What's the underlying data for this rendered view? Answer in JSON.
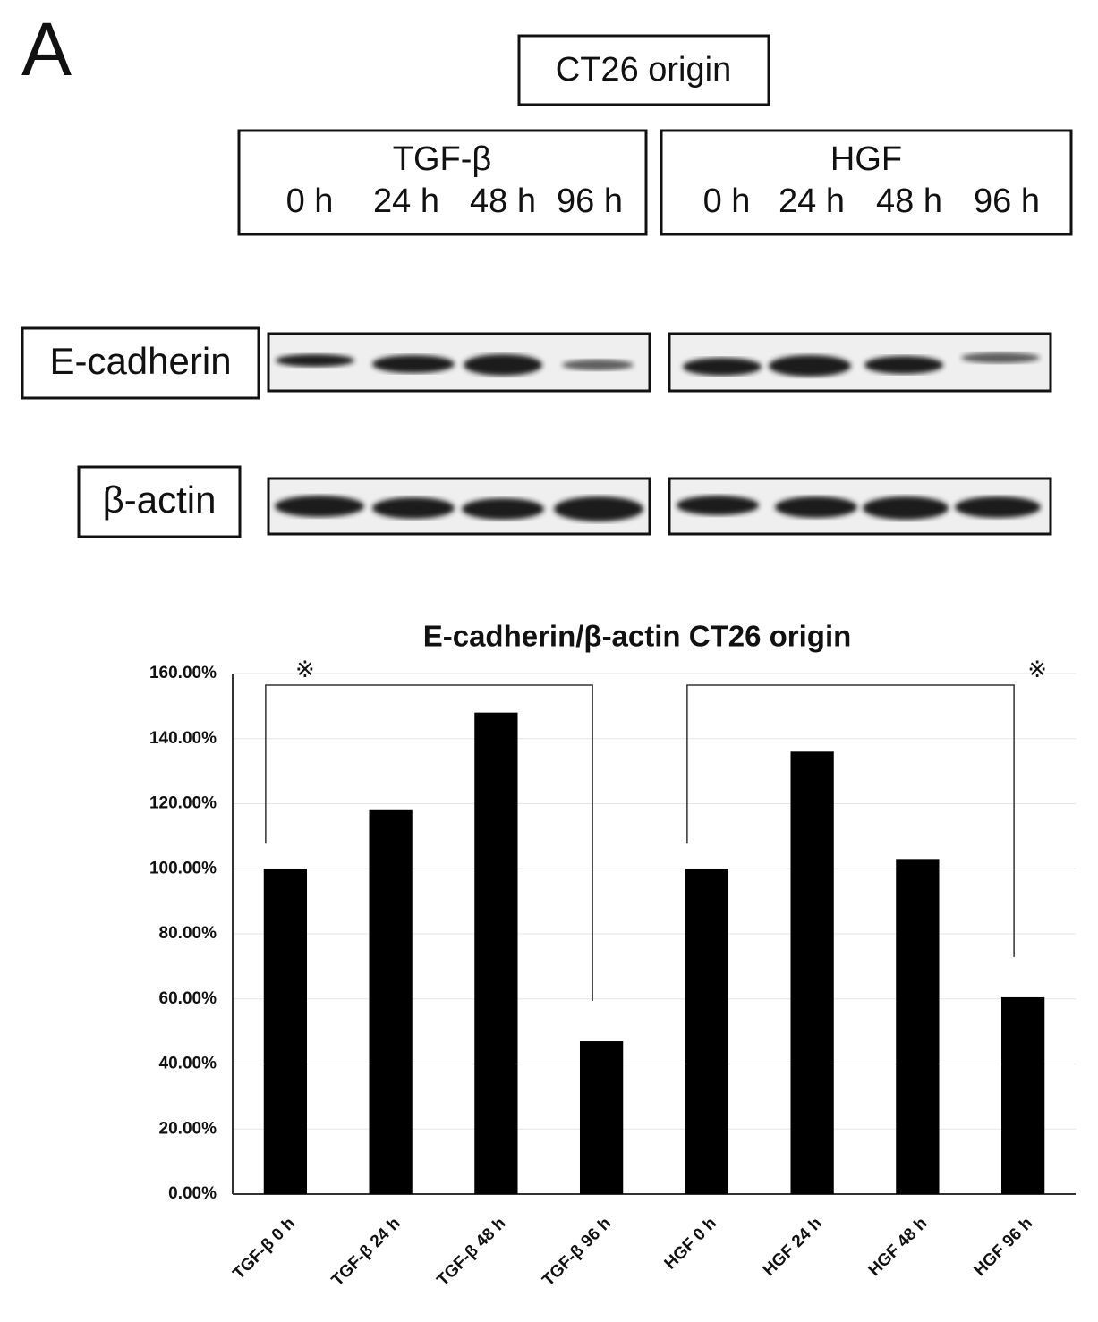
{
  "figure": {
    "panel": "A",
    "origin": "CT26 origin",
    "treatments": [
      {
        "name": "TGF-β",
        "times": [
          "0 h",
          "24 h",
          "48 h",
          "96 h"
        ]
      },
      {
        "name": "HGF",
        "times": [
          "0 h",
          "24 h",
          "48 h",
          "96 h"
        ]
      }
    ],
    "blots": [
      "E-cadherin",
      "β-actin"
    ]
  },
  "chart_data": {
    "type": "bar",
    "title": "E-cadherin/β-actin CT26 origin",
    "categories": [
      "TGF-β 0 h",
      "TGF-β 24 h",
      "TGF-β 48 h",
      "TGF-β 96 h",
      "HGF 0 h",
      "HGF 24 h",
      "HGF 48 h",
      "HGF 96 h"
    ],
    "values": [
      100,
      118,
      148,
      47,
      100,
      136,
      103,
      60.5
    ],
    "color": "#000000",
    "ylim": [
      0,
      160
    ],
    "yticks": [
      {
        "value": 0,
        "label": "0.00%"
      },
      {
        "value": 20,
        "label": "20.00%"
      },
      {
        "value": 40,
        "label": "40.00%"
      },
      {
        "value": 60,
        "label": "60.00%"
      },
      {
        "value": 80,
        "label": "80.00%"
      },
      {
        "value": 100,
        "label": "100.00%"
      },
      {
        "value": 120,
        "label": "120.00%"
      },
      {
        "value": 140,
        "label": "140.00%"
      },
      {
        "value": 160,
        "label": "160.00%"
      }
    ],
    "grid": true,
    "annotations": [
      "※",
      "※"
    ]
  }
}
